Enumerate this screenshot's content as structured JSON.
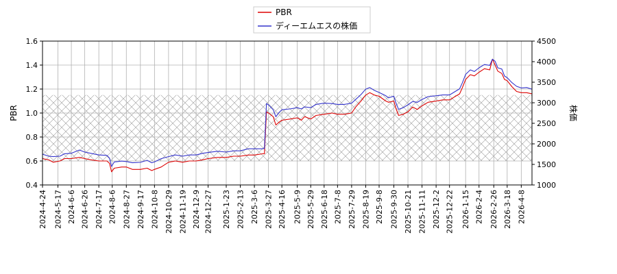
{
  "chart_data": {
    "type": "line",
    "legend_position": "top-center",
    "grid": true,
    "shaded_band": {
      "ymin": 0.6,
      "ymax": 1.15,
      "pattern": "crosshatch",
      "axis": "left"
    },
    "y_left": {
      "label": "PBR",
      "lim": [
        0.4,
        1.6
      ],
      "ticks": [
        "0.4",
        "0.6",
        "0.8",
        "1.0",
        "1.2",
        "1.4",
        "1.6"
      ]
    },
    "y_right": {
      "label": "株価",
      "lim": [
        1000,
        4500
      ],
      "ticks": [
        "1000",
        "1500",
        "2000",
        "2500",
        "3000",
        "3500",
        "4000",
        "4500"
      ]
    },
    "x": {
      "start": "2024-04-24",
      "end": "2026-04-24",
      "ticks": [
        "2024-4-24",
        "2024-5-17",
        "2024-6-6",
        "2024-6-26",
        "2024-7-17",
        "2024-8-6",
        "2024-8-27",
        "2024-9-17",
        "2024-10-8",
        "2024-10-29",
        "2024-11-19",
        "2024-12-9",
        "2024-12-27",
        "2025-1-23",
        "2025-2-13",
        "2025-3-6",
        "2025-3-27",
        "2025-4-16",
        "2025-5-9",
        "2025-5-29",
        "2025-6-18",
        "2025-7-8",
        "2025-7-29",
        "2025-8-19",
        "2025-9-8",
        "2025-9-30",
        "2025-10-21",
        "2025-11-11",
        "2025-12-2",
        "2025-12-22",
        "2026-1-15",
        "2026-2-4",
        "2026-2-26",
        "2026-3-18",
        "2026-4-8"
      ]
    },
    "series": [
      {
        "name": "PBR",
        "color": "#dd0000",
        "axis": "left",
        "points": [
          [
            "2024-04-24",
            0.62
          ],
          [
            "2024-05-03",
            0.61
          ],
          [
            "2024-05-10",
            0.59
          ],
          [
            "2024-05-20",
            0.6
          ],
          [
            "2024-05-27",
            0.62
          ],
          [
            "2024-06-06",
            0.62
          ],
          [
            "2024-06-18",
            0.63
          ],
          [
            "2024-06-26",
            0.62
          ],
          [
            "2024-07-05",
            0.61
          ],
          [
            "2024-07-17",
            0.6
          ],
          [
            "2024-07-29",
            0.6
          ],
          [
            "2024-08-02",
            0.58
          ],
          [
            "2024-08-05",
            0.51
          ],
          [
            "2024-08-09",
            0.54
          ],
          [
            "2024-08-20",
            0.55
          ],
          [
            "2024-08-27",
            0.55
          ],
          [
            "2024-09-05",
            0.53
          ],
          [
            "2024-09-17",
            0.53
          ],
          [
            "2024-09-27",
            0.54
          ],
          [
            "2024-10-04",
            0.52
          ],
          [
            "2024-10-08",
            0.53
          ],
          [
            "2024-10-18",
            0.55
          ],
          [
            "2024-10-29",
            0.59
          ],
          [
            "2024-11-08",
            0.6
          ],
          [
            "2024-11-19",
            0.59
          ],
          [
            "2024-11-29",
            0.6
          ],
          [
            "2024-12-09",
            0.6
          ],
          [
            "2024-12-19",
            0.61
          ],
          [
            "2024-12-27",
            0.62
          ],
          [
            "2025-01-10",
            0.63
          ],
          [
            "2025-01-23",
            0.63
          ],
          [
            "2025-02-03",
            0.64
          ],
          [
            "2025-02-13",
            0.64
          ],
          [
            "2025-02-25",
            0.65
          ],
          [
            "2025-03-06",
            0.65
          ],
          [
            "2025-03-18",
            0.66
          ],
          [
            "2025-03-21",
            0.66
          ],
          [
            "2025-03-24",
            1.01
          ],
          [
            "2025-03-27",
            1.0
          ],
          [
            "2025-04-03",
            0.97
          ],
          [
            "2025-04-07",
            0.9
          ],
          [
            "2025-04-11",
            0.92
          ],
          [
            "2025-04-16",
            0.94
          ],
          [
            "2025-04-28",
            0.95
          ],
          [
            "2025-05-09",
            0.96
          ],
          [
            "2025-05-15",
            0.94
          ],
          [
            "2025-05-20",
            0.97
          ],
          [
            "2025-05-29",
            0.95
          ],
          [
            "2025-06-06",
            0.98
          ],
          [
            "2025-06-18",
            0.99
          ],
          [
            "2025-06-30",
            1.0
          ],
          [
            "2025-07-08",
            0.99
          ],
          [
            "2025-07-18",
            0.99
          ],
          [
            "2025-07-29",
            1.0
          ],
          [
            "2025-08-04",
            1.05
          ],
          [
            "2025-08-12",
            1.1
          ],
          [
            "2025-08-19",
            1.15
          ],
          [
            "2025-08-25",
            1.17
          ],
          [
            "2025-09-01",
            1.15
          ],
          [
            "2025-09-08",
            1.14
          ],
          [
            "2025-09-18",
            1.1
          ],
          [
            "2025-09-22",
            1.09
          ],
          [
            "2025-09-30",
            1.1
          ],
          [
            "2025-10-03",
            1.04
          ],
          [
            "2025-10-07",
            0.98
          ],
          [
            "2025-10-14",
            0.99
          ],
          [
            "2025-10-21",
            1.01
          ],
          [
            "2025-10-28",
            1.05
          ],
          [
            "2025-11-04",
            1.03
          ],
          [
            "2025-11-11",
            1.06
          ],
          [
            "2025-11-20",
            1.09
          ],
          [
            "2025-12-02",
            1.1
          ],
          [
            "2025-12-12",
            1.11
          ],
          [
            "2025-12-22",
            1.11
          ],
          [
            "2026-01-06",
            1.16
          ],
          [
            "2026-01-10",
            1.21
          ],
          [
            "2026-01-15",
            1.28
          ],
          [
            "2026-01-22",
            1.32
          ],
          [
            "2026-01-28",
            1.31
          ],
          [
            "2026-02-04",
            1.34
          ],
          [
            "2026-02-12",
            1.37
          ],
          [
            "2026-02-20",
            1.36
          ],
          [
            "2026-02-24",
            1.45
          ],
          [
            "2026-02-28",
            1.4
          ],
          [
            "2026-03-04",
            1.35
          ],
          [
            "2026-03-10",
            1.33
          ],
          [
            "2026-03-14",
            1.28
          ],
          [
            "2026-03-18",
            1.27
          ],
          [
            "2026-03-25",
            1.22
          ],
          [
            "2026-04-01",
            1.18
          ],
          [
            "2026-04-08",
            1.17
          ],
          [
            "2026-04-16",
            1.17
          ],
          [
            "2026-04-24",
            1.16
          ]
        ]
      },
      {
        "name": "ディーエムエスの株価",
        "color": "#3333cc",
        "axis": "right",
        "points": [
          [
            "2024-04-24",
            1750
          ],
          [
            "2024-05-03",
            1700
          ],
          [
            "2024-05-10",
            1690
          ],
          [
            "2024-05-20",
            1700
          ],
          [
            "2024-05-27",
            1760
          ],
          [
            "2024-06-06",
            1770
          ],
          [
            "2024-06-18",
            1850
          ],
          [
            "2024-06-26",
            1800
          ],
          [
            "2024-07-05",
            1770
          ],
          [
            "2024-07-17",
            1730
          ],
          [
            "2024-07-29",
            1720
          ],
          [
            "2024-08-02",
            1650
          ],
          [
            "2024-08-05",
            1450
          ],
          [
            "2024-08-09",
            1560
          ],
          [
            "2024-08-20",
            1580
          ],
          [
            "2024-08-27",
            1570
          ],
          [
            "2024-09-05",
            1540
          ],
          [
            "2024-09-17",
            1550
          ],
          [
            "2024-09-27",
            1600
          ],
          [
            "2024-10-04",
            1540
          ],
          [
            "2024-10-08",
            1560
          ],
          [
            "2024-10-18",
            1640
          ],
          [
            "2024-10-29",
            1690
          ],
          [
            "2024-11-08",
            1730
          ],
          [
            "2024-11-19",
            1700
          ],
          [
            "2024-11-29",
            1730
          ],
          [
            "2024-12-09",
            1730
          ],
          [
            "2024-12-19",
            1770
          ],
          [
            "2024-12-27",
            1790
          ],
          [
            "2025-01-10",
            1820
          ],
          [
            "2025-01-23",
            1800
          ],
          [
            "2025-02-03",
            1830
          ],
          [
            "2025-02-13",
            1830
          ],
          [
            "2025-02-25",
            1880
          ],
          [
            "2025-03-06",
            1880
          ],
          [
            "2025-03-18",
            1880
          ],
          [
            "2025-03-21",
            1890
          ],
          [
            "2025-03-24",
            2980
          ],
          [
            "2025-03-27",
            2950
          ],
          [
            "2025-04-03",
            2830
          ],
          [
            "2025-04-07",
            2660
          ],
          [
            "2025-04-11",
            2750
          ],
          [
            "2025-04-16",
            2830
          ],
          [
            "2025-04-28",
            2850
          ],
          [
            "2025-05-09",
            2880
          ],
          [
            "2025-05-15",
            2850
          ],
          [
            "2025-05-20",
            2900
          ],
          [
            "2025-05-29",
            2880
          ],
          [
            "2025-06-06",
            2960
          ],
          [
            "2025-06-18",
            2990
          ],
          [
            "2025-06-30",
            2980
          ],
          [
            "2025-07-08",
            2960
          ],
          [
            "2025-07-18",
            2960
          ],
          [
            "2025-07-29",
            2990
          ],
          [
            "2025-08-04",
            3080
          ],
          [
            "2025-08-12",
            3200
          ],
          [
            "2025-08-19",
            3330
          ],
          [
            "2025-08-25",
            3370
          ],
          [
            "2025-09-01",
            3300
          ],
          [
            "2025-09-08",
            3250
          ],
          [
            "2025-09-18",
            3170
          ],
          [
            "2025-09-22",
            3120
          ],
          [
            "2025-09-30",
            3160
          ],
          [
            "2025-10-03",
            3000
          ],
          [
            "2025-10-07",
            2840
          ],
          [
            "2025-10-14",
            2880
          ],
          [
            "2025-10-21",
            2950
          ],
          [
            "2025-10-28",
            3030
          ],
          [
            "2025-11-04",
            3010
          ],
          [
            "2025-11-11",
            3080
          ],
          [
            "2025-11-20",
            3150
          ],
          [
            "2025-12-02",
            3170
          ],
          [
            "2025-12-12",
            3190
          ],
          [
            "2025-12-22",
            3190
          ],
          [
            "2026-01-06",
            3340
          ],
          [
            "2026-01-10",
            3480
          ],
          [
            "2026-01-15",
            3690
          ],
          [
            "2026-01-22",
            3800
          ],
          [
            "2026-01-28",
            3760
          ],
          [
            "2026-02-04",
            3850
          ],
          [
            "2026-02-12",
            3930
          ],
          [
            "2026-02-20",
            3910
          ],
          [
            "2026-02-24",
            4060
          ],
          [
            "2026-02-28",
            4010
          ],
          [
            "2026-03-04",
            3850
          ],
          [
            "2026-03-10",
            3820
          ],
          [
            "2026-03-14",
            3650
          ],
          [
            "2026-03-18",
            3610
          ],
          [
            "2026-03-25",
            3490
          ],
          [
            "2026-04-01",
            3400
          ],
          [
            "2026-04-08",
            3360
          ],
          [
            "2026-04-16",
            3370
          ],
          [
            "2026-04-24",
            3330
          ]
        ]
      }
    ]
  }
}
